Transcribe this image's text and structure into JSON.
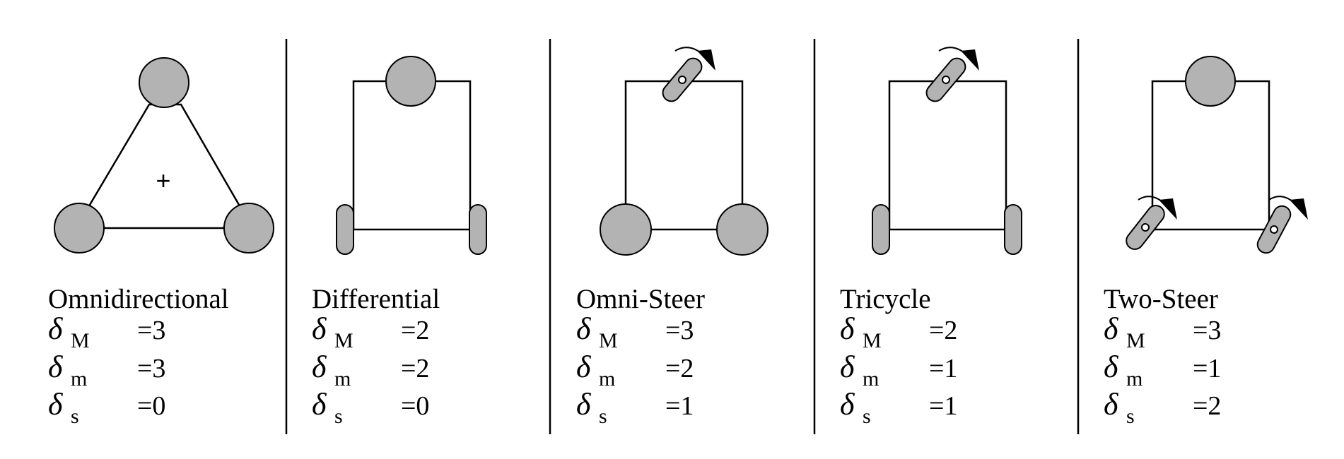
{
  "panels": [
    {
      "name": "Omnidirectional",
      "rows": [
        {
          "symbol": "δ",
          "sub": "M",
          "value": "=3"
        },
        {
          "symbol": "δ",
          "sub": "m",
          "value": "=3"
        },
        {
          "symbol": "δ",
          "sub": "s",
          "value": "=0"
        }
      ]
    },
    {
      "name": "Differential",
      "rows": [
        {
          "symbol": "δ",
          "sub": "M",
          "value": "=2"
        },
        {
          "symbol": "δ",
          "sub": "m",
          "value": "=2"
        },
        {
          "symbol": "δ",
          "sub": "s",
          "value": "=0"
        }
      ]
    },
    {
      "name": "Omni-Steer",
      "rows": [
        {
          "symbol": "δ",
          "sub": "M",
          "value": "=3"
        },
        {
          "symbol": "δ",
          "sub": "m",
          "value": "=2"
        },
        {
          "symbol": "δ",
          "sub": "s",
          "value": "=1"
        }
      ]
    },
    {
      "name": "Tricycle",
      "rows": [
        {
          "symbol": "δ",
          "sub": "M",
          "value": "=2"
        },
        {
          "symbol": "δ",
          "sub": "m",
          "value": "=1"
        },
        {
          "symbol": "δ",
          "sub": "s",
          "value": "=1"
        }
      ]
    },
    {
      "name": "Two-Steer",
      "rows": [
        {
          "symbol": "δ",
          "sub": "M",
          "value": "=3"
        },
        {
          "symbol": "δ",
          "sub": "m",
          "value": "=1"
        },
        {
          "symbol": "δ",
          "sub": "s",
          "value": "=2"
        }
      ]
    }
  ],
  "center_mark": "+"
}
